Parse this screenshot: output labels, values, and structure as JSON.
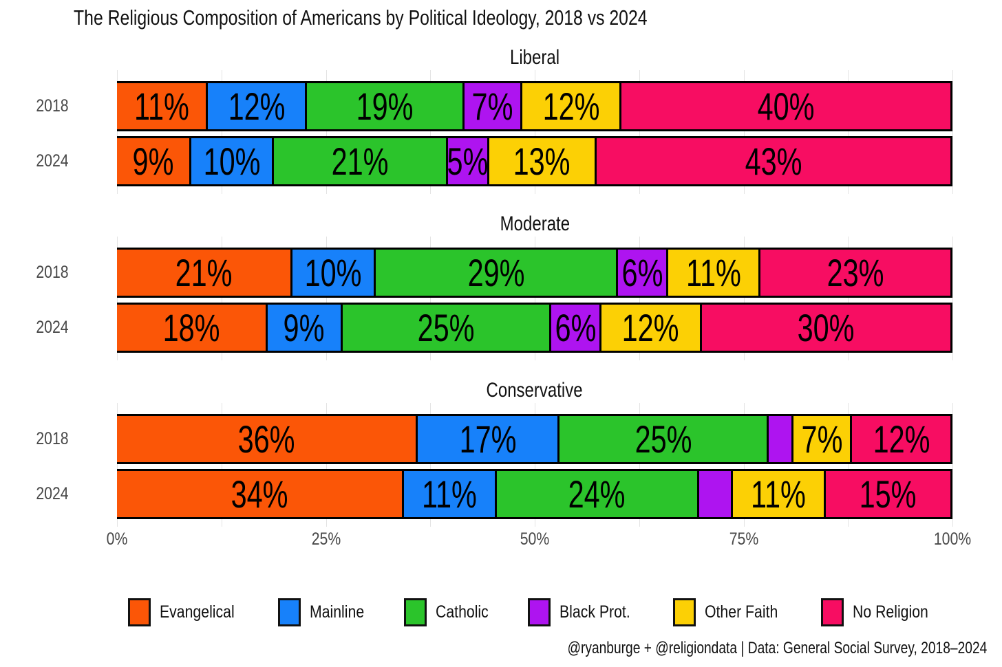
{
  "title": "The Religious Composition of Americans by Political Ideology, 2018 vs 2024",
  "credit": "@ryanburge + @religiondata | Data: General Social Survey, 2018–2024",
  "chart_data": {
    "type": "bar",
    "variant": "horizontal-stacked",
    "title": "The Religious Composition of Americans by Political Ideology, 2018 vs 2024",
    "categories": [
      "Evangelical",
      "Mainline",
      "Catholic",
      "Black Prot.",
      "Other Faith",
      "No Religion"
    ],
    "palette": [
      "#FB5607",
      "#1781FA",
      "#2BC42B",
      "#AE14F0",
      "#FCD005",
      "#F70D62"
    ],
    "x_axis": {
      "range": [
        0,
        100
      ],
      "tick_labels": [
        "0%",
        "25%",
        "50%",
        "75%",
        "100%"
      ],
      "tick_positions": [
        0,
        25,
        50,
        75,
        100
      ],
      "minor_grid_step": 12.5,
      "grid": true
    },
    "panels": [
      {
        "label": "Liberal",
        "rows": [
          {
            "year": "2018",
            "values": [
              11,
              12,
              19,
              7,
              12,
              40
            ],
            "labels": [
              "11%",
              "12%",
              "19%",
              "7%",
              "12%",
              "40%"
            ]
          },
          {
            "year": "2024",
            "values": [
              9,
              10,
              21,
              5,
              13,
              43
            ],
            "labels": [
              "9%",
              "10%",
              "21%",
              "5%",
              "13%",
              "43%"
            ]
          }
        ]
      },
      {
        "label": "Moderate",
        "rows": [
          {
            "year": "2018",
            "values": [
              21,
              10,
              29,
              6,
              11,
              23
            ],
            "labels": [
              "21%",
              "10%",
              "29%",
              "6%",
              "11%",
              "23%"
            ]
          },
          {
            "year": "2024",
            "values": [
              18,
              9,
              25,
              6,
              12,
              30
            ],
            "labels": [
              "18%",
              "9%",
              "25%",
              "6%",
              "12%",
              "30%"
            ]
          }
        ]
      },
      {
        "label": "Conservative",
        "rows": [
          {
            "year": "2018",
            "values": [
              36,
              17,
              25,
              3,
              7,
              12
            ],
            "labels": [
              "36%",
              "17%",
              "25%",
              "",
              "7%",
              "12%"
            ]
          },
          {
            "year": "2024",
            "values": [
              34,
              11,
              24,
              4,
              11,
              15
            ],
            "labels": [
              "34%",
              "11%",
              "24%",
              "",
              "11%",
              "15%"
            ]
          }
        ]
      }
    ],
    "legend": [
      {
        "label": "Evangelical",
        "color": "#FB5607"
      },
      {
        "label": "Mainline",
        "color": "#1781FA"
      },
      {
        "label": "Catholic",
        "color": "#2BC42B"
      },
      {
        "label": "Black Prot.",
        "color": "#AE14F0"
      },
      {
        "label": "Other Faith",
        "color": "#FCD005"
      },
      {
        "label": "No Religion",
        "color": "#F70D62"
      }
    ],
    "legend_position": "bottom"
  }
}
